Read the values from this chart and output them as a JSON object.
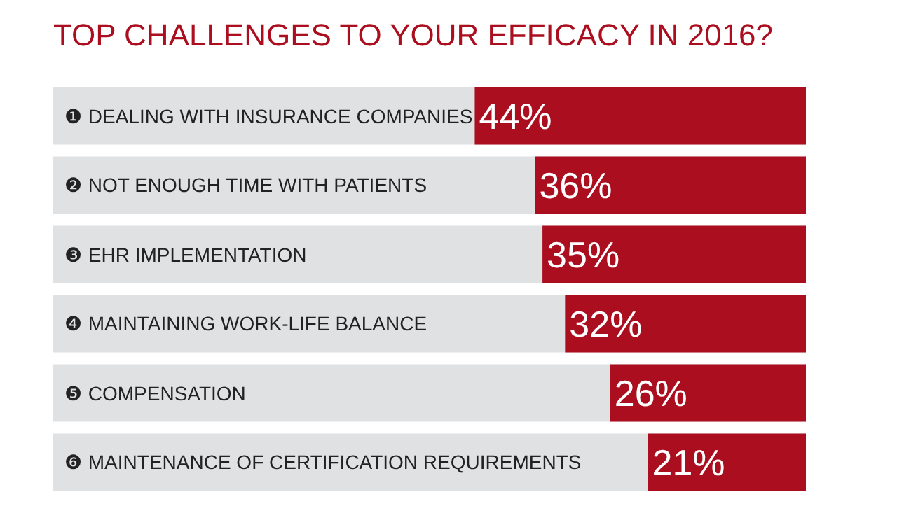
{
  "chart_data": {
    "type": "bar",
    "orientation": "horizontal",
    "title": "TOP CHALLENGES TO YOUR EFFICACY IN 2016?",
    "categories": [
      "❶ DEALING WITH INSURANCE COMPANIES",
      "❷ NOT ENOUGH TIME WITH PATIENTS",
      "❸ EHR IMPLEMENTATION",
      "❹ MAINTAINING WORK-LIFE BALANCE",
      "❺ COMPENSATION",
      "❻ MAINTENANCE OF CERTIFICATION REQUIREMENTS"
    ],
    "values": [
      44,
      36,
      35,
      32,
      26,
      21
    ],
    "value_labels": [
      "44%",
      "36%",
      "35%",
      "32%",
      "26%",
      "21%"
    ],
    "color": "#ab0f1f",
    "xlim": [
      100,
      0
    ],
    "tick_labels": false,
    "grid": false,
    "legend": false
  }
}
